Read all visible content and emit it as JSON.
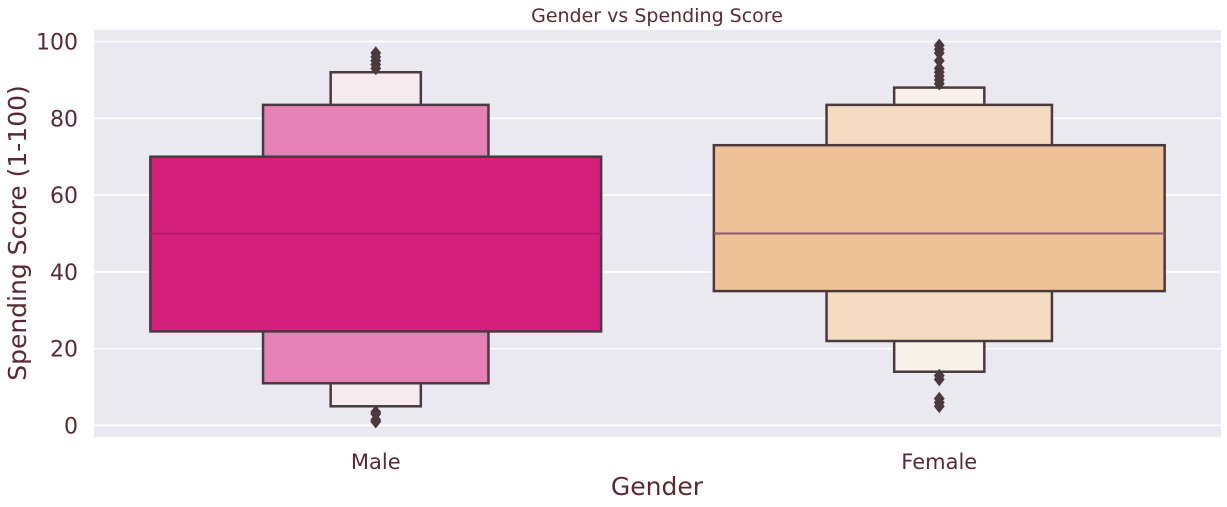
{
  "chart_data": {
    "type": "boxen",
    "title": "Gender vs Spending Score",
    "xlabel": "Gender",
    "ylabel": "Spending Score (1-100)",
    "categories": [
      "Male",
      "Female"
    ],
    "ylim": [
      -3,
      103
    ],
    "yticks": [
      0,
      20,
      40,
      60,
      80,
      100
    ],
    "grid": true,
    "colors": {
      "plot_bg": "#eae9f2",
      "grid": "#ffffff",
      "edge": "#4a3a3e",
      "text": "#5a2a33",
      "median": "#8a5a6a"
    },
    "series": [
      {
        "category": "Male",
        "median": 50,
        "median_color": "#b8146a",
        "boxes": [
          {
            "low": 24.5,
            "high": 70,
            "color": "#d41f7c"
          },
          {
            "low": 11,
            "high": 83.5,
            "color": "#e681b6"
          },
          {
            "low": 5,
            "high": 92,
            "color": "#f5ebef"
          }
        ],
        "outliers": [
          1,
          1.5,
          3,
          3.5,
          93,
          94,
          95,
          96,
          97
        ]
      },
      {
        "category": "Female",
        "median": 50,
        "median_color": "#8e5a6a",
        "boxes": [
          {
            "low": 35,
            "high": 73,
            "color": "#efc196"
          },
          {
            "low": 22,
            "high": 83.5,
            "color": "#f3dbc2"
          },
          {
            "low": 14,
            "high": 88,
            "color": "#f8f1ea"
          }
        ],
        "outliers": [
          5,
          6,
          7,
          12,
          13,
          89,
          90,
          91,
          92,
          93,
          95,
          97,
          98,
          99
        ]
      }
    ]
  }
}
